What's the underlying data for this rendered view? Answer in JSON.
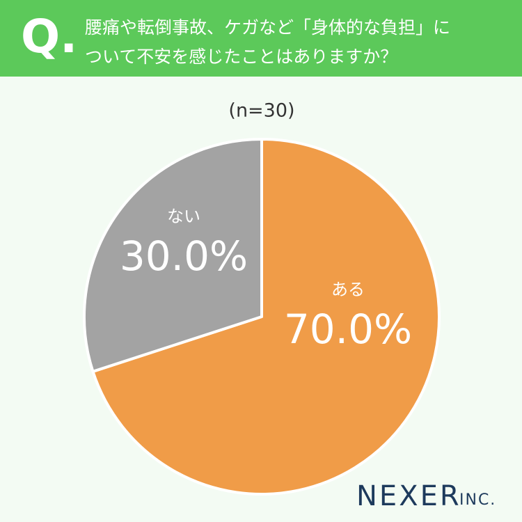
{
  "chart_data": {
    "type": "pie",
    "question_mark": "Q.",
    "title": [
      "腰痛や転倒事故、ケガなど「身体的な負担」に",
      "ついて不安を感じたことはありますか？"
    ],
    "subtitle": "(n=30)",
    "categories": [
      "ある",
      "ない"
    ],
    "values": [
      70,
      30
    ],
    "value_labels": [
      "70.0%",
      "30.0%"
    ],
    "colors": [
      "#f09c48",
      "#a3a3a3"
    ],
    "brand": "NEXER",
    "brand_suffix": "INC."
  }
}
